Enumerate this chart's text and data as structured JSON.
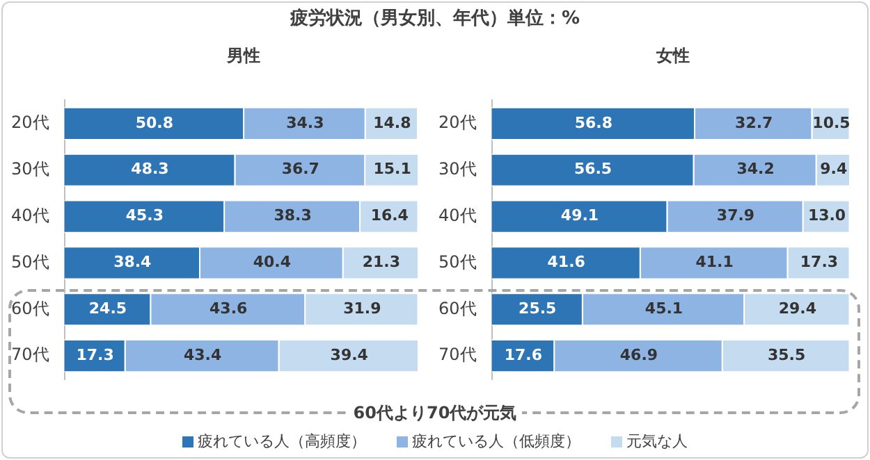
{
  "chart_data": [
    {
      "type": "bar",
      "orientation": "horizontal",
      "stacked": true,
      "title": "疲労状況（男女別、年代）単位：%",
      "subtitle": "男性",
      "categories": [
        "20代",
        "30代",
        "40代",
        "50代",
        "60代",
        "70代"
      ],
      "series": [
        {
          "name": "疲れている人（高頻度）",
          "color": "#2e75b6",
          "values": [
            50.8,
            48.3,
            45.3,
            38.4,
            24.5,
            17.3
          ]
        },
        {
          "name": "疲れている人（低頻度）",
          "color": "#8db4e2",
          "values": [
            34.3,
            36.7,
            38.3,
            40.4,
            43.6,
            43.4
          ]
        },
        {
          "name": "元気な人",
          "color": "#c5dcf0",
          "values": [
            14.8,
            15.1,
            16.4,
            21.3,
            31.9,
            39.4
          ]
        }
      ],
      "data_labels": true,
      "legend": "bottom",
      "tick_labels": "y",
      "annotations": [
        "60代より70代が元気"
      ]
    },
    {
      "type": "bar",
      "orientation": "horizontal",
      "stacked": true,
      "subtitle": "女性",
      "categories": [
        "20代",
        "30代",
        "40代",
        "50代",
        "60代",
        "70代"
      ],
      "series": [
        {
          "color": "#2e75b6",
          "values": [
            56.8,
            56.5,
            49.1,
            41.6,
            25.5,
            17.6
          ]
        },
        {
          "color": "#8db4e2",
          "values": [
            32.7,
            34.2,
            37.9,
            41.1,
            45.1,
            46.9
          ]
        },
        {
          "color": "#c5dcf0",
          "values": [
            10.5,
            9.4,
            13.0,
            17.3,
            29.4,
            35.5
          ],
          "value_labels": [
            "10.5",
            "9.4",
            "13.0",
            "17.3",
            "29.4",
            "35.5"
          ]
        }
      ],
      "data_labels": true,
      "tick_labels": "y"
    }
  ]
}
